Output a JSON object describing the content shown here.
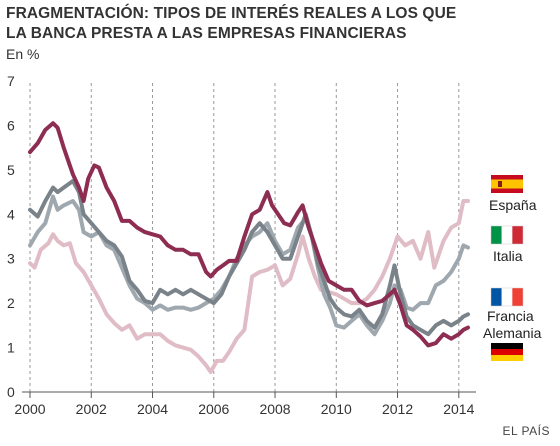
{
  "header": {
    "title_line1": "FRAGMENTACIÓN: TIPOS DE INTERÉS REALES A LOS QUE",
    "title_line2": "LA BANCA PRESTA A LAS EMPRESAS FINANCIERAS",
    "unit": "En %"
  },
  "footer": {
    "source": "EL PAÍS"
  },
  "colors": {
    "espana": "#8e2d52",
    "italia": "#9ea8ae",
    "francia": "#7a8389",
    "alemania": "#dfbcc6",
    "grid": "#999999",
    "axis": "#555555"
  },
  "chart_data": {
    "type": "line",
    "title": "FRAGMENTACIÓN: TIPOS DE INTERÉS REALES A LOS QUE LA BANCA PRESTA A LAS EMPRESAS FINANCIERAS",
    "ylabel": "En %",
    "xlabel": "",
    "xlim": [
      2000,
      2014.3
    ],
    "ylim": [
      0,
      7
    ],
    "x_ticks": [
      2000,
      2002,
      2004,
      2006,
      2008,
      2010,
      2012,
      2014
    ],
    "y_ticks": [
      0,
      1,
      2,
      3,
      4,
      5,
      6,
      7
    ],
    "grid": "vertical dashed",
    "legend": "right",
    "series": [
      {
        "name": "España",
        "color": "#8e2d52",
        "flag": "es",
        "points": [
          [
            2000.0,
            5.4
          ],
          [
            2000.25,
            5.6
          ],
          [
            2000.5,
            5.9
          ],
          [
            2000.75,
            6.05
          ],
          [
            2000.9,
            5.95
          ],
          [
            2001.1,
            5.5
          ],
          [
            2001.4,
            4.9
          ],
          [
            2001.6,
            4.6
          ],
          [
            2001.75,
            4.3
          ],
          [
            2001.9,
            4.8
          ],
          [
            2002.1,
            5.1
          ],
          [
            2002.25,
            5.05
          ],
          [
            2002.5,
            4.6
          ],
          [
            2002.75,
            4.3
          ],
          [
            2003.0,
            3.85
          ],
          [
            2003.25,
            3.85
          ],
          [
            2003.5,
            3.7
          ],
          [
            2003.75,
            3.6
          ],
          [
            2004.0,
            3.55
          ],
          [
            2004.25,
            3.5
          ],
          [
            2004.5,
            3.3
          ],
          [
            2004.75,
            3.2
          ],
          [
            2005.0,
            3.2
          ],
          [
            2005.25,
            3.1
          ],
          [
            2005.5,
            3.1
          ],
          [
            2005.75,
            2.7
          ],
          [
            2005.9,
            2.6
          ],
          [
            2006.1,
            2.75
          ],
          [
            2006.3,
            2.85
          ],
          [
            2006.5,
            2.95
          ],
          [
            2006.75,
            2.95
          ],
          [
            2007.0,
            3.5
          ],
          [
            2007.25,
            4.0
          ],
          [
            2007.5,
            4.1
          ],
          [
            2007.75,
            4.5
          ],
          [
            2007.9,
            4.2
          ],
          [
            2008.1,
            4.0
          ],
          [
            2008.3,
            3.8
          ],
          [
            2008.5,
            3.75
          ],
          [
            2008.75,
            4.05
          ],
          [
            2008.9,
            4.2
          ],
          [
            2009.1,
            3.7
          ],
          [
            2009.3,
            3.3
          ],
          [
            2009.5,
            2.9
          ],
          [
            2009.75,
            2.5
          ],
          [
            2010.0,
            2.4
          ],
          [
            2010.25,
            2.3
          ],
          [
            2010.5,
            2.3
          ],
          [
            2010.75,
            2.05
          ],
          [
            2011.0,
            1.95
          ],
          [
            2011.25,
            2.0
          ],
          [
            2011.5,
            2.05
          ],
          [
            2011.75,
            2.2
          ],
          [
            2011.9,
            2.3
          ],
          [
            2012.1,
            1.95
          ],
          [
            2012.3,
            1.5
          ],
          [
            2012.5,
            1.4
          ],
          [
            2012.75,
            1.25
          ],
          [
            2013.0,
            1.05
          ],
          [
            2013.25,
            1.1
          ],
          [
            2013.5,
            1.3
          ],
          [
            2013.75,
            1.2
          ],
          [
            2014.0,
            1.3
          ],
          [
            2014.15,
            1.4
          ],
          [
            2014.3,
            1.45
          ]
        ]
      },
      {
        "name": "Italia",
        "color": "#9ea8ae",
        "flag": "it",
        "points": [
          [
            2000.0,
            3.3
          ],
          [
            2000.25,
            3.6
          ],
          [
            2000.5,
            3.8
          ],
          [
            2000.75,
            4.4
          ],
          [
            2000.9,
            4.1
          ],
          [
            2001.1,
            4.2
          ],
          [
            2001.4,
            4.3
          ],
          [
            2001.6,
            4.1
          ],
          [
            2001.75,
            3.6
          ],
          [
            2002.0,
            3.5
          ],
          [
            2002.25,
            3.6
          ],
          [
            2002.5,
            3.3
          ],
          [
            2002.75,
            3.2
          ],
          [
            2003.0,
            2.8
          ],
          [
            2003.25,
            2.4
          ],
          [
            2003.5,
            2.1
          ],
          [
            2003.75,
            2.0
          ],
          [
            2004.0,
            1.85
          ],
          [
            2004.25,
            1.95
          ],
          [
            2004.5,
            1.85
          ],
          [
            2004.75,
            1.9
          ],
          [
            2005.0,
            1.9
          ],
          [
            2005.25,
            1.85
          ],
          [
            2005.5,
            1.9
          ],
          [
            2005.75,
            2.0
          ],
          [
            2006.0,
            2.1
          ],
          [
            2006.25,
            2.3
          ],
          [
            2006.5,
            2.6
          ],
          [
            2006.75,
            3.0
          ],
          [
            2007.0,
            3.3
          ],
          [
            2007.25,
            3.5
          ],
          [
            2007.5,
            3.6
          ],
          [
            2007.75,
            3.8
          ],
          [
            2008.0,
            3.4
          ],
          [
            2008.25,
            3.1
          ],
          [
            2008.5,
            3.2
          ],
          [
            2008.75,
            3.7
          ],
          [
            2009.0,
            3.9
          ],
          [
            2009.2,
            3.5
          ],
          [
            2009.4,
            2.8
          ],
          [
            2009.6,
            2.2
          ],
          [
            2009.8,
            1.9
          ],
          [
            2010.0,
            1.5
          ],
          [
            2010.25,
            1.45
          ],
          [
            2010.5,
            1.6
          ],
          [
            2010.75,
            1.75
          ],
          [
            2011.0,
            1.5
          ],
          [
            2011.25,
            1.3
          ],
          [
            2011.5,
            1.6
          ],
          [
            2011.75,
            2.0
          ],
          [
            2011.9,
            2.4
          ],
          [
            2012.1,
            2.3
          ],
          [
            2012.3,
            1.9
          ],
          [
            2012.5,
            1.85
          ],
          [
            2012.75,
            2.0
          ],
          [
            2013.0,
            2.0
          ],
          [
            2013.25,
            2.4
          ],
          [
            2013.5,
            2.5
          ],
          [
            2013.75,
            2.7
          ],
          [
            2014.0,
            3.0
          ],
          [
            2014.15,
            3.3
          ],
          [
            2014.3,
            3.25
          ]
        ]
      },
      {
        "name": "Francia",
        "color": "#7a8389",
        "flag": "fr",
        "points": [
          [
            2000.0,
            4.1
          ],
          [
            2000.25,
            3.95
          ],
          [
            2000.5,
            4.3
          ],
          [
            2000.75,
            4.6
          ],
          [
            2000.9,
            4.5
          ],
          [
            2001.1,
            4.6
          ],
          [
            2001.4,
            4.75
          ],
          [
            2001.6,
            4.5
          ],
          [
            2001.75,
            4.0
          ],
          [
            2002.0,
            3.8
          ],
          [
            2002.25,
            3.6
          ],
          [
            2002.5,
            3.4
          ],
          [
            2002.75,
            3.3
          ],
          [
            2003.0,
            3.05
          ],
          [
            2003.25,
            2.5
          ],
          [
            2003.5,
            2.3
          ],
          [
            2003.75,
            2.05
          ],
          [
            2004.0,
            2.0
          ],
          [
            2004.25,
            2.3
          ],
          [
            2004.5,
            2.2
          ],
          [
            2004.75,
            2.3
          ],
          [
            2005.0,
            2.2
          ],
          [
            2005.25,
            2.3
          ],
          [
            2005.5,
            2.2
          ],
          [
            2005.75,
            2.1
          ],
          [
            2006.0,
            2.0
          ],
          [
            2006.25,
            2.2
          ],
          [
            2006.5,
            2.6
          ],
          [
            2006.75,
            2.9
          ],
          [
            2007.0,
            3.2
          ],
          [
            2007.25,
            3.6
          ],
          [
            2007.5,
            3.8
          ],
          [
            2007.75,
            3.6
          ],
          [
            2008.0,
            3.3
          ],
          [
            2008.25,
            3.0
          ],
          [
            2008.5,
            3.0
          ],
          [
            2008.75,
            3.5
          ],
          [
            2009.0,
            4.0
          ],
          [
            2009.2,
            3.5
          ],
          [
            2009.4,
            2.9
          ],
          [
            2009.6,
            2.5
          ],
          [
            2009.8,
            2.1
          ],
          [
            2010.0,
            1.9
          ],
          [
            2010.25,
            1.75
          ],
          [
            2010.5,
            1.7
          ],
          [
            2010.75,
            1.85
          ],
          [
            2011.0,
            1.6
          ],
          [
            2011.25,
            1.45
          ],
          [
            2011.5,
            1.75
          ],
          [
            2011.75,
            2.4
          ],
          [
            2011.9,
            2.85
          ],
          [
            2012.1,
            2.2
          ],
          [
            2012.3,
            1.7
          ],
          [
            2012.5,
            1.5
          ],
          [
            2012.75,
            1.4
          ],
          [
            2013.0,
            1.3
          ],
          [
            2013.25,
            1.5
          ],
          [
            2013.5,
            1.6
          ],
          [
            2013.75,
            1.5
          ],
          [
            2014.0,
            1.6
          ],
          [
            2014.15,
            1.7
          ],
          [
            2014.3,
            1.75
          ]
        ]
      },
      {
        "name": "Alemania",
        "color": "#dfbcc6",
        "flag": "de",
        "points": [
          [
            2000.0,
            2.9
          ],
          [
            2000.15,
            2.8
          ],
          [
            2000.35,
            3.2
          ],
          [
            2000.6,
            3.35
          ],
          [
            2000.75,
            3.55
          ],
          [
            2000.9,
            3.4
          ],
          [
            2001.1,
            3.3
          ],
          [
            2001.3,
            3.35
          ],
          [
            2001.5,
            2.9
          ],
          [
            2001.75,
            2.7
          ],
          [
            2002.0,
            2.4
          ],
          [
            2002.25,
            2.1
          ],
          [
            2002.5,
            1.75
          ],
          [
            2002.75,
            1.55
          ],
          [
            2003.0,
            1.4
          ],
          [
            2003.25,
            1.5
          ],
          [
            2003.5,
            1.2
          ],
          [
            2003.75,
            1.3
          ],
          [
            2004.0,
            1.3
          ],
          [
            2004.25,
            1.3
          ],
          [
            2004.5,
            1.15
          ],
          [
            2004.75,
            1.05
          ],
          [
            2005.0,
            1.0
          ],
          [
            2005.25,
            0.95
          ],
          [
            2005.5,
            0.8
          ],
          [
            2005.75,
            0.6
          ],
          [
            2005.9,
            0.45
          ],
          [
            2006.1,
            0.7
          ],
          [
            2006.3,
            0.7
          ],
          [
            2006.5,
            0.9
          ],
          [
            2006.75,
            1.2
          ],
          [
            2007.0,
            1.4
          ],
          [
            2007.25,
            2.6
          ],
          [
            2007.5,
            2.7
          ],
          [
            2007.75,
            2.75
          ],
          [
            2008.0,
            2.85
          ],
          [
            2008.25,
            2.4
          ],
          [
            2008.5,
            2.55
          ],
          [
            2008.75,
            3.1
          ],
          [
            2008.9,
            3.5
          ],
          [
            2009.1,
            3.0
          ],
          [
            2009.3,
            2.6
          ],
          [
            2009.5,
            2.3
          ],
          [
            2009.75,
            2.25
          ],
          [
            2010.0,
            2.2
          ],
          [
            2010.25,
            2.1
          ],
          [
            2010.5,
            2.0
          ],
          [
            2010.75,
            2.0
          ],
          [
            2011.0,
            2.1
          ],
          [
            2011.25,
            2.3
          ],
          [
            2011.5,
            2.6
          ],
          [
            2011.75,
            3.0
          ],
          [
            2012.0,
            3.5
          ],
          [
            2012.25,
            3.3
          ],
          [
            2012.5,
            3.4
          ],
          [
            2012.75,
            3.0
          ],
          [
            2013.0,
            3.6
          ],
          [
            2013.2,
            2.8
          ],
          [
            2013.5,
            3.4
          ],
          [
            2013.75,
            3.7
          ],
          [
            2014.0,
            3.8
          ],
          [
            2014.15,
            4.3
          ],
          [
            2014.3,
            4.3
          ]
        ]
      }
    ]
  }
}
